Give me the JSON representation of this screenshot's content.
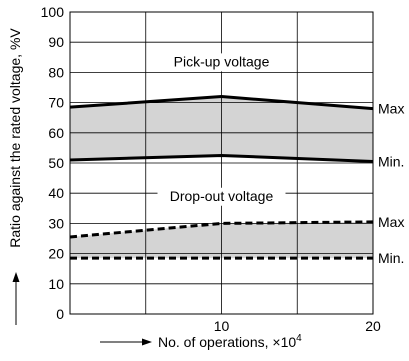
{
  "chart_data": {
    "type": "line",
    "xlabel": "No. of operations, ×10",
    "xlabel_exponent": "4",
    "ylabel": "Ratio against the rated voltage, %V",
    "xlim": [
      0,
      20
    ],
    "ylim": [
      0,
      100
    ],
    "x_ticks": [
      10,
      20
    ],
    "y_ticks": [
      0,
      10,
      20,
      30,
      40,
      50,
      60,
      70,
      80,
      90,
      100
    ],
    "grid": true,
    "band_labels": {
      "pickup": "Pick-up voltage",
      "dropout": "Drop-out voltage"
    },
    "series": [
      {
        "id": "pickup_max",
        "name": "Max",
        "style": "solid",
        "x": [
          0,
          10,
          20
        ],
        "y": [
          68.5,
          72,
          68
        ]
      },
      {
        "id": "pickup_min",
        "name": "Min.",
        "style": "solid",
        "x": [
          0,
          10,
          20
        ],
        "y": [
          51,
          52.5,
          50.5
        ]
      },
      {
        "id": "dropout_max",
        "name": "Max",
        "style": "dashed",
        "x": [
          0,
          10,
          20
        ],
        "y": [
          25.5,
          30,
          30.5
        ]
      },
      {
        "id": "dropout_min",
        "name": "Min.",
        "style": "dashed",
        "x": [
          0,
          10,
          20
        ],
        "y": [
          18.5,
          18.5,
          18.5
        ]
      }
    ],
    "colors": {
      "band_fill": "#d4d4d4",
      "line": "#000000",
      "grid": "#000000"
    }
  }
}
